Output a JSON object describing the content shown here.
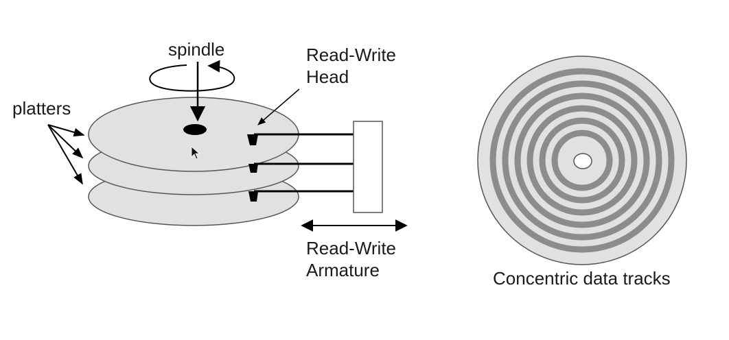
{
  "labels": {
    "spindle": "spindle",
    "platters": "platters",
    "head_line1": "Read-Write",
    "head_line2": "Head",
    "armature_line1": "Read-Write",
    "armature_line2": "Armature",
    "tracks": "Concentric data tracks"
  },
  "colors": {
    "platter_fill": "#e1e1e1",
    "track_ring": "#8c8c8c",
    "ink": "#000000",
    "text": "#1a1a1a"
  },
  "icons": {
    "pointer": "mouse-cursor-icon"
  }
}
